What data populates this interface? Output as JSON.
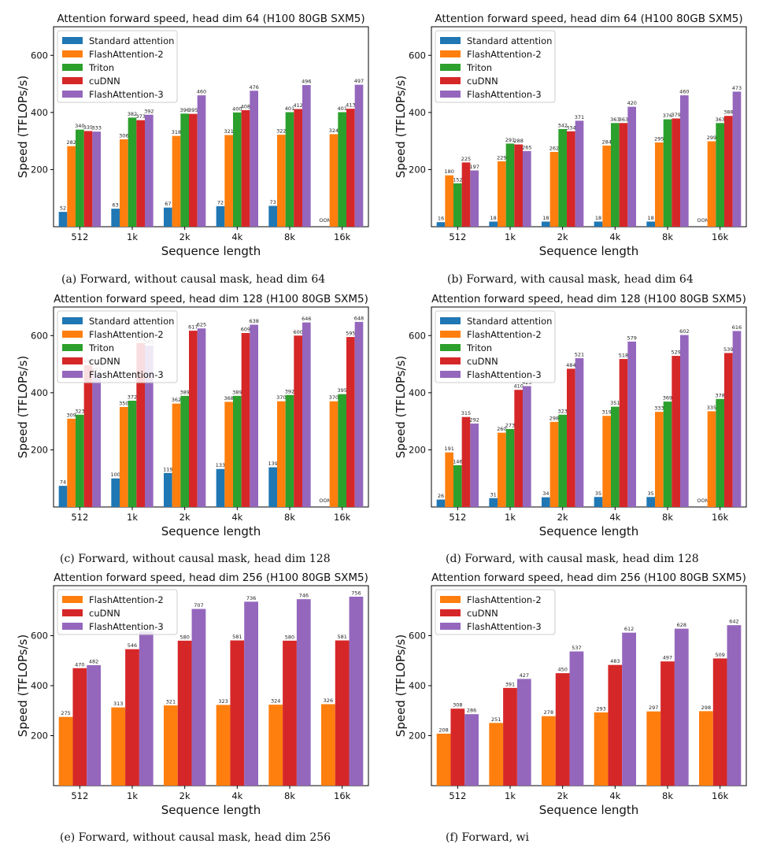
{
  "colors": {
    "Standard attention": "#1f77b4",
    "FlashAttention-2": "#ff7f0e",
    "Triton": "#2ca02c",
    "cuDNN": "#d62728",
    "FlashAttention-3": "#9467bd"
  },
  "captions": [
    "(a) Forward, without causal mask, head dim 64",
    "(b) Forward, with causal mask, head dim 64",
    "(c) Forward, without causal mask, head dim 128",
    "(d) Forward, with causal mask, head dim 128",
    "(e) Forward, without causal mask, head dim 256",
    "(f) Forward, wi"
  ],
  "chart_data": [
    {
      "type": "bar",
      "title": "Attention forward speed, head dim 64 (H100 80GB SXM5)",
      "xlabel": "Sequence length",
      "ylabel": "Speed (TFLOPs/s)",
      "ylim": [
        0,
        700
      ],
      "yticks": [
        "200",
        "400",
        "600"
      ],
      "categories": [
        "512",
        "1k",
        "2k",
        "4k",
        "8k",
        "16k"
      ],
      "oom_text": "OOM",
      "legend": "top-left",
      "series": [
        {
          "name": "Standard attention",
          "values": [
            52,
            63,
            67,
            72,
            73,
            null
          ],
          "labels": [
            "52",
            "63",
            "67",
            "72",
            "73",
            ""
          ]
        },
        {
          "name": "FlashAttention-2",
          "values": [
            282,
            306,
            318,
            321,
            322,
            324
          ],
          "labels": [
            "282",
            "306",
            "318",
            "321",
            "322",
            "324"
          ]
        },
        {
          "name": "Triton",
          "values": [
            340,
            382,
            396,
            400,
            401,
            401
          ],
          "labels": [
            "340",
            "382",
            "396",
            "400",
            "401",
            "401"
          ]
        },
        {
          "name": "cuDNN",
          "values": [
            335,
            373,
            395,
            408,
            412,
            413
          ],
          "labels": [
            "335",
            "373",
            "395",
            "408",
            "412",
            "413"
          ]
        },
        {
          "name": "FlashAttention-3",
          "values": [
            333,
            392,
            460,
            476,
            496,
            497
          ],
          "labels": [
            "333",
            "392",
            "460",
            "476",
            "496",
            "497"
          ]
        }
      ]
    },
    {
      "type": "bar",
      "title": "Attention forward speed, head dim 64 (H100 80GB SXM5)",
      "xlabel": "Sequence length",
      "ylabel": "Speed (TFLOPs/s)",
      "ylim": [
        0,
        700
      ],
      "yticks": [
        "200",
        "400",
        "600"
      ],
      "categories": [
        "512",
        "1k",
        "2k",
        "4k",
        "8k",
        "16k"
      ],
      "oom_text": "OOM",
      "legend": "top-left",
      "series": [
        {
          "name": "Standard attention",
          "values": [
            16,
            18,
            18,
            18,
            18,
            null
          ],
          "labels": [
            "16",
            "18",
            "18",
            "18",
            "18",
            ""
          ]
        },
        {
          "name": "FlashAttention-2",
          "values": [
            180,
            229,
            262,
            284,
            295,
            299
          ],
          "labels": [
            "180",
            "229",
            "262",
            "284",
            "295",
            "299"
          ]
        },
        {
          "name": "Triton",
          "values": [
            152,
            291,
            342,
            363,
            376,
            363
          ],
          "labels": [
            "152",
            "291",
            "342",
            "363",
            "376",
            "363"
          ]
        },
        {
          "name": "cuDNN",
          "values": [
            225,
            288,
            334,
            363,
            379,
            388
          ],
          "labels": [
            "225",
            "288",
            "334",
            "363",
            "379",
            "388"
          ]
        },
        {
          "name": "FlashAttention-3",
          "values": [
            197,
            265,
            371,
            420,
            460,
            473
          ],
          "labels": [
            "197",
            "265",
            "371",
            "420",
            "460",
            "473"
          ]
        }
      ]
    },
    {
      "type": "bar",
      "title": "Attention forward speed, head dim 128 (H100 80GB SXM5)",
      "xlabel": "Sequence length",
      "ylabel": "Speed (TFLOPs/s)",
      "ylim": [
        0,
        700
      ],
      "yticks": [
        "200",
        "400",
        "600"
      ],
      "categories": [
        "512",
        "1k",
        "2k",
        "4k",
        "8k",
        "16k"
      ],
      "oom_text": "OOM",
      "legend": "top-left",
      "series": [
        {
          "name": "Standard attention",
          "values": [
            74,
            100,
            119,
            133,
            139,
            null
          ],
          "labels": [
            "74",
            "100",
            "119",
            "133",
            "139",
            ""
          ]
        },
        {
          "name": "FlashAttention-2",
          "values": [
            309,
            350,
            362,
            368,
            370,
            370
          ],
          "labels": [
            "309",
            "350",
            "362",
            "368",
            "370",
            "370"
          ]
        },
        {
          "name": "Triton",
          "values": [
            323,
            372,
            389,
            389,
            392,
            395
          ],
          "labels": [
            "323",
            "372",
            "389",
            "389",
            "392",
            "395"
          ]
        },
        {
          "name": "cuDNN",
          "values": [
            497,
            574,
            617,
            609,
            600,
            595
          ],
          "labels": [
            "497",
            "574",
            "617",
            "609",
            "600",
            "595"
          ]
        },
        {
          "name": "FlashAttention-3",
          "values": [
            467,
            565,
            625,
            638,
            646,
            648
          ],
          "labels": [
            "467",
            "565",
            "625",
            "638",
            "646",
            "648"
          ]
        }
      ]
    },
    {
      "type": "bar",
      "title": "Attention forward speed, head dim 128 (H100 80GB SXM5)",
      "xlabel": "Sequence length",
      "ylabel": "Speed (TFLOPs/s)",
      "ylim": [
        0,
        700
      ],
      "yticks": [
        "200",
        "400",
        "600"
      ],
      "categories": [
        "512",
        "1k",
        "2k",
        "4k",
        "8k",
        "16k"
      ],
      "oom_text": "OOM",
      "legend": "top-left",
      "series": [
        {
          "name": "Standard attention",
          "values": [
            26,
            31,
            34,
            35,
            35,
            null
          ],
          "labels": [
            "26",
            "31",
            "34",
            "35",
            "35",
            ""
          ]
        },
        {
          "name": "FlashAttention-2",
          "values": [
            191,
            260,
            298,
            319,
            333,
            335
          ],
          "labels": [
            "191",
            "260",
            "298",
            "319",
            "333",
            "335"
          ]
        },
        {
          "name": "Triton",
          "values": [
            146,
            273,
            323,
            351,
            369,
            378
          ],
          "labels": [
            "146",
            "273",
            "323",
            "351",
            "369",
            "378"
          ]
        },
        {
          "name": "cuDNN",
          "values": [
            315,
            410,
            484,
            518,
            529,
            539
          ],
          "labels": [
            "315",
            "410",
            "484",
            "518",
            "529",
            "539"
          ]
        },
        {
          "name": "FlashAttention-3",
          "values": [
            292,
            423,
            521,
            579,
            602,
            616
          ],
          "labels": [
            "292",
            "423",
            "521",
            "579",
            "602",
            "616"
          ]
        }
      ]
    },
    {
      "type": "bar",
      "title": "Attention forward speed, head dim 256 (H100 80GB SXM5)",
      "xlabel": "Sequence length",
      "ylabel": "Speed (TFLOPs/s)",
      "ylim": [
        0,
        800
      ],
      "yticks": [
        "200",
        "400",
        "600"
      ],
      "categories": [
        "512",
        "1k",
        "2k",
        "4k",
        "8k",
        "16k"
      ],
      "oom_text": "",
      "legend": "top-left",
      "series": [
        {
          "name": "FlashAttention-2",
          "values": [
            275,
            313,
            321,
            323,
            324,
            326
          ],
          "labels": [
            "275",
            "313",
            "321",
            "323",
            "324",
            "326"
          ]
        },
        {
          "name": "cuDNN",
          "values": [
            470,
            546,
            580,
            581,
            580,
            581
          ],
          "labels": [
            "470",
            "546",
            "580",
            "581",
            "580",
            "581"
          ]
        },
        {
          "name": "FlashAttention-3",
          "values": [
            482,
            617,
            707,
            736,
            746,
            756
          ],
          "labels": [
            "482",
            "",
            "707",
            "736",
            "746",
            "756"
          ]
        }
      ]
    },
    {
      "type": "bar",
      "title": "Attention forward speed, head dim 256 (H100 80GB SXM5)",
      "xlabel": "Sequence length",
      "ylabel": "Speed (TFLOPs/s)",
      "ylim": [
        0,
        800
      ],
      "yticks": [
        "200",
        "400",
        "600"
      ],
      "categories": [
        "512",
        "1k",
        "2k",
        "4k",
        "8k",
        "16k"
      ],
      "oom_text": "",
      "legend": "top-left",
      "series": [
        {
          "name": "FlashAttention-2",
          "values": [
            208,
            251,
            278,
            293,
            297,
            298
          ],
          "labels": [
            "208",
            "251",
            "278",
            "293",
            "297",
            "298"
          ]
        },
        {
          "name": "cuDNN",
          "values": [
            308,
            391,
            450,
            483,
            497,
            509
          ],
          "labels": [
            "308",
            "391",
            "450",
            "483",
            "497",
            "509"
          ]
        },
        {
          "name": "FlashAttention-3",
          "values": [
            286,
            427,
            537,
            612,
            628,
            642
          ],
          "labels": [
            "286",
            "427",
            "537",
            "612",
            "628",
            "642"
          ]
        }
      ]
    }
  ]
}
